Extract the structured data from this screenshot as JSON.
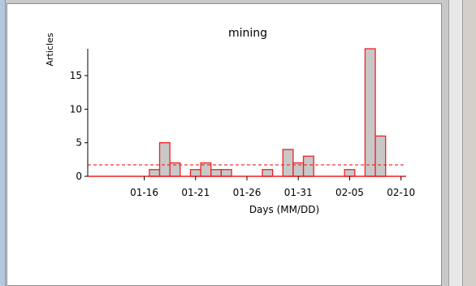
{
  "chart_data": {
    "type": "bar",
    "title": "mining",
    "xlabel": "Days (MM/DD)",
    "ylabel": "Articles",
    "x_tick_labels": [
      "01-16",
      "01-21",
      "01-26",
      "01-31",
      "02-05",
      "02-10"
    ],
    "y_ticks": [
      0,
      5,
      10,
      15
    ],
    "ylim": [
      0,
      19
    ],
    "days": [
      "01-11",
      "01-12",
      "01-13",
      "01-14",
      "01-15",
      "01-16",
      "01-17",
      "01-18",
      "01-19",
      "01-20",
      "01-21",
      "01-22",
      "01-23",
      "01-24",
      "01-25",
      "01-26",
      "01-27",
      "01-28",
      "01-29",
      "01-30",
      "01-31",
      "02-01",
      "02-02",
      "02-03",
      "02-04",
      "02-05",
      "02-06",
      "02-07",
      "02-08",
      "02-09",
      "02-10"
    ],
    "values": [
      0,
      0,
      0,
      0,
      0,
      0,
      1,
      5,
      2,
      0,
      1,
      2,
      1,
      1,
      0,
      0,
      0,
      1,
      0,
      4,
      2,
      3,
      0,
      0,
      0,
      1,
      0,
      19,
      6,
      0,
      0
    ],
    "mean_line": 1.7,
    "colors": {
      "bar_fill": "#c8c8c8",
      "bar_edge": "#ee2222",
      "mean_line": "#ee2222",
      "axis": "#000000"
    }
  }
}
